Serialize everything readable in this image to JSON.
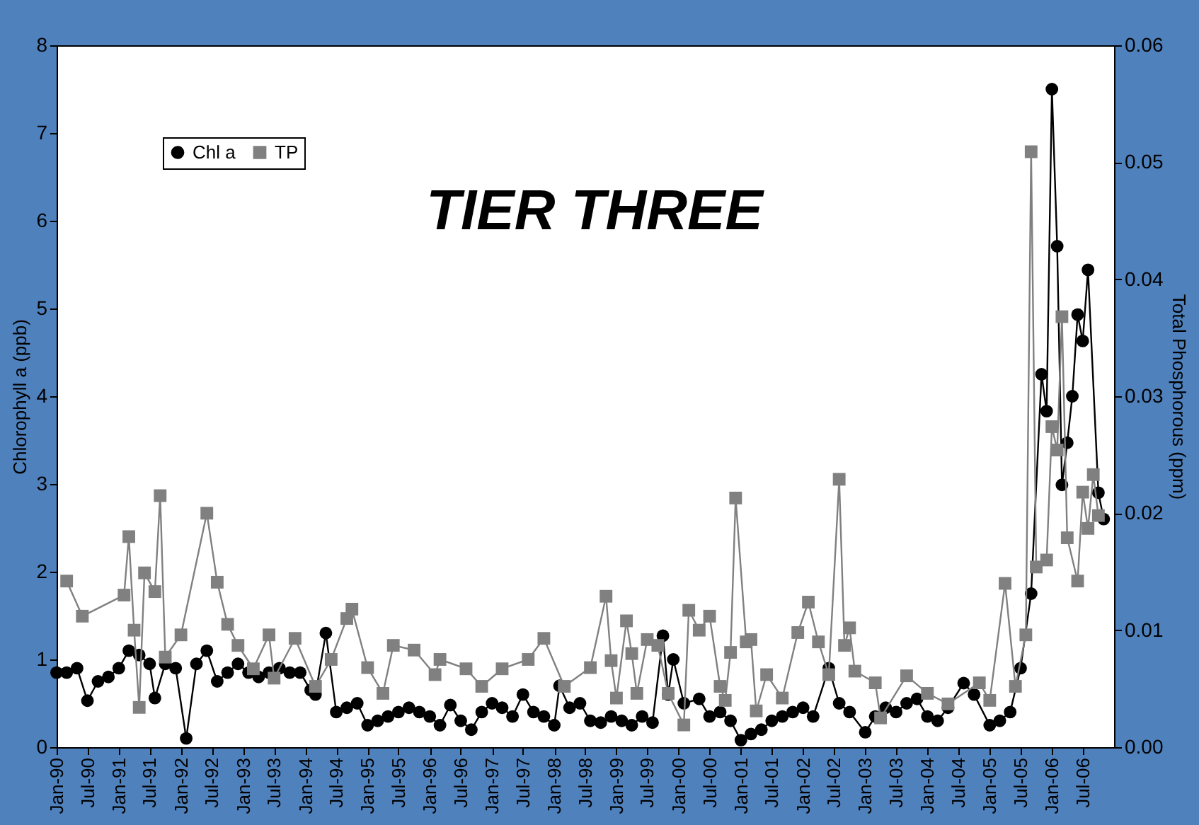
{
  "chart_data": {
    "type": "line",
    "ylabel": "Chlorophyll a (ppb)",
    "y2label": "Total Phosphorous (ppm)",
    "annotations": [
      "TIER THREE"
    ],
    "legend": "top left",
    "grid": false,
    "xlim": [
      "1990-01",
      "2007-01"
    ],
    "xticks": [
      {
        "value": "1990-01",
        "label": "Jan-90"
      },
      {
        "value": "1990-07",
        "label": "Jul-90"
      },
      {
        "value": "1991-01",
        "label": "Jan-91"
      },
      {
        "value": "1991-07",
        "label": "Jul-91"
      },
      {
        "value": "1992-01",
        "label": "Jan-92"
      },
      {
        "value": "1992-07",
        "label": "Jul-92"
      },
      {
        "value": "1993-01",
        "label": "Jan-93"
      },
      {
        "value": "1993-07",
        "label": "Jul-93"
      },
      {
        "value": "1994-01",
        "label": "Jan-94"
      },
      {
        "value": "1994-07",
        "label": "Jul-94"
      },
      {
        "value": "1995-01",
        "label": "Jan-95"
      },
      {
        "value": "1995-07",
        "label": "Jul-95"
      },
      {
        "value": "1996-01",
        "label": "Jan-96"
      },
      {
        "value": "1996-07",
        "label": "Jul-96"
      },
      {
        "value": "1997-01",
        "label": "Jan-97"
      },
      {
        "value": "1997-07",
        "label": "Jul-97"
      },
      {
        "value": "1998-01",
        "label": "Jan-98"
      },
      {
        "value": "1998-07",
        "label": "Jul-98"
      },
      {
        "value": "1999-01",
        "label": "Jan-99"
      },
      {
        "value": "1999-07",
        "label": "Jul-99"
      },
      {
        "value": "2000-01",
        "label": "Jan-00"
      },
      {
        "value": "2000-07",
        "label": "Jul-00"
      },
      {
        "value": "2001-01",
        "label": "Jan-01"
      },
      {
        "value": "2001-07",
        "label": "Jul-01"
      },
      {
        "value": "2002-01",
        "label": "Jan-02"
      },
      {
        "value": "2002-07",
        "label": "Jul-02"
      },
      {
        "value": "2003-01",
        "label": "Jan-03"
      },
      {
        "value": "2003-07",
        "label": "Jul-03"
      },
      {
        "value": "2004-01",
        "label": "Jan-04"
      },
      {
        "value": "2004-07",
        "label": "Jul-04"
      },
      {
        "value": "2005-01",
        "label": "Jan-05"
      },
      {
        "value": "2005-07",
        "label": "Jul-05"
      },
      {
        "value": "2006-01",
        "label": "Jan-06"
      },
      {
        "value": "2006-07",
        "label": "Jul-06"
      }
    ],
    "ylim": [
      0,
      8
    ],
    "yticks": [
      0,
      1,
      2,
      3,
      4,
      5,
      6,
      7,
      8
    ],
    "y2lim": [
      0,
      0.06
    ],
    "y2ticks": [
      {
        "value": 0,
        "label": "0.00"
      },
      0.01,
      0.02,
      0.03,
      0.04,
      0.05,
      0.06
    ],
    "series": [
      {
        "name": "Chl a",
        "color": "#000000",
        "marker": "circle",
        "x": [
          "1990-01",
          "1990-03",
          "1990-05",
          "1990-07",
          "1990-09",
          "1990-11",
          "1991-01",
          "1991-03",
          "1991-05",
          "1991-07",
          "1991-08",
          "1991-10",
          "1991-12",
          "1992-02",
          "1992-04",
          "1992-06",
          "1992-08",
          "1992-10",
          "1992-12",
          "1993-02",
          "1993-04",
          "1993-06",
          "1993-08",
          "1993-10",
          "1993-12",
          "1994-02",
          "1994-03",
          "1994-05",
          "1994-07",
          "1994-09",
          "1994-11",
          "1995-01",
          "1995-03",
          "1995-05",
          "1995-07",
          "1995-09",
          "1995-11",
          "1996-01",
          "1996-03",
          "1996-05",
          "1996-07",
          "1996-09",
          "1996-11",
          "1997-01",
          "1997-03",
          "1997-05",
          "1997-07",
          "1997-09",
          "1997-11",
          "1998-01",
          "1998-02",
          "1998-04",
          "1998-06",
          "1998-08",
          "1998-10",
          "1998-12",
          "1999-02",
          "1999-04",
          "1999-06",
          "1999-08",
          "1999-10",
          "1999-11",
          "1999-12",
          "2000-02",
          "2000-05",
          "2000-07",
          "2000-09",
          "2000-11",
          "2001-01",
          "2001-03",
          "2001-05",
          "2001-07",
          "2001-09",
          "2001-11",
          "2002-01",
          "2002-03",
          "2002-06",
          "2002-08",
          "2002-10",
          "2003-01",
          "2003-03",
          "2003-05",
          "2003-07",
          "2003-09",
          "2003-11",
          "2004-01",
          "2004-03",
          "2004-05",
          "2004-08",
          "2004-10",
          "2005-01",
          "2005-03",
          "2005-05",
          "2005-07",
          "2005-09",
          "2005-11",
          "2005-12",
          "2006-01",
          "2006-02",
          "2006-03",
          "2006-04",
          "2006-05",
          "2006-06",
          "2006-07",
          "2006-08",
          "2006-10",
          "2006-11"
        ],
        "values": [
          0.85,
          0.85,
          0.9,
          0.53,
          0.75,
          0.8,
          0.9,
          1.1,
          1.05,
          0.95,
          0.56,
          0.95,
          0.9,
          0.1,
          0.95,
          1.1,
          0.75,
          0.85,
          0.95,
          0.85,
          0.8,
          0.85,
          0.9,
          0.85,
          0.85,
          0.65,
          0.6,
          1.3,
          0.4,
          0.45,
          0.5,
          0.25,
          0.3,
          0.35,
          0.4,
          0.45,
          0.4,
          0.35,
          0.25,
          0.48,
          0.3,
          0.2,
          0.4,
          0.5,
          0.45,
          0.35,
          0.6,
          0.4,
          0.35,
          0.25,
          0.7,
          0.45,
          0.5,
          0.3,
          0.28,
          0.35,
          0.3,
          0.25,
          0.35,
          0.28,
          1.27,
          0.6,
          1.0,
          0.5,
          0.55,
          0.35,
          0.4,
          0.3,
          0.08,
          0.15,
          0.2,
          0.3,
          0.35,
          0.4,
          0.45,
          0.35,
          0.9,
          0.5,
          0.4,
          0.17,
          0.35,
          0.45,
          0.4,
          0.5,
          0.55,
          0.35,
          0.3,
          0.45,
          0.73,
          0.6,
          0.25,
          0.3,
          0.4,
          0.9,
          1.75,
          4.25,
          3.83,
          7.5,
          5.71,
          2.99,
          3.47,
          4.0,
          4.93,
          4.63,
          5.44,
          2.9,
          2.6
        ]
      },
      {
        "name": "TP",
        "color": "#808080",
        "marker": "square",
        "axis": "y2",
        "x": [
          "1990-03",
          "1990-06",
          "1991-02",
          "1991-03",
          "1991-04",
          "1991-05",
          "1991-06",
          "1991-08",
          "1991-09",
          "1991-10",
          "1992-01",
          "1992-06",
          "1992-08",
          "1992-10",
          "1992-12",
          "1993-03",
          "1993-06",
          "1993-07",
          "1993-11",
          "1994-03",
          "1994-06",
          "1994-09",
          "1994-10",
          "1995-01",
          "1995-04",
          "1995-06",
          "1995-10",
          "1996-02",
          "1996-03",
          "1996-08",
          "1996-11",
          "1997-03",
          "1997-08",
          "1997-11",
          "1998-03",
          "1998-08",
          "1998-11",
          "1998-12",
          "1999-01",
          "1999-03",
          "1999-04",
          "1999-05",
          "1999-07",
          "1999-09",
          "1999-11",
          "2000-02",
          "2000-03",
          "2000-05",
          "2000-07",
          "2000-09",
          "2000-10",
          "2000-11",
          "2000-12",
          "2001-02",
          "2001-03",
          "2001-04",
          "2001-06",
          "2001-09",
          "2001-12",
          "2002-02",
          "2002-04",
          "2002-06",
          "2002-08",
          "2002-09",
          "2002-10",
          "2002-11",
          "2003-03",
          "2003-04",
          "2003-09",
          "2004-01",
          "2004-05",
          "2004-11",
          "2005-01",
          "2005-04",
          "2005-06",
          "2005-08",
          "2005-09",
          "2005-10",
          "2005-12",
          "2006-01",
          "2006-02",
          "2006-03",
          "2006-04",
          "2006-06",
          "2006-07",
          "2006-08",
          "2006-09",
          "2006-10"
        ],
        "values": [
          0.0142,
          0.0112,
          0.013,
          0.018,
          0.01,
          0.0034,
          0.0149,
          0.0133,
          0.0215,
          0.0077,
          0.0096,
          0.02,
          0.0141,
          0.0105,
          0.0087,
          0.0067,
          0.0096,
          0.0059,
          0.0093,
          0.0052,
          0.0075,
          0.011,
          0.0118,
          0.0068,
          0.0046,
          0.0087,
          0.0083,
          0.0062,
          0.0075,
          0.0067,
          0.0052,
          0.0067,
          0.0075,
          0.0093,
          0.0052,
          0.0068,
          0.0129,
          0.0074,
          0.0042,
          0.0108,
          0.008,
          0.0046,
          0.0092,
          0.0087,
          0.0046,
          0.0019,
          0.0117,
          0.01,
          0.0112,
          0.0052,
          0.004,
          0.0081,
          0.0213,
          0.009,
          0.0092,
          0.0031,
          0.0062,
          0.0042,
          0.0098,
          0.0124,
          0.009,
          0.0062,
          0.0229,
          0.0087,
          0.0102,
          0.0065,
          0.0055,
          0.0025,
          0.0061,
          0.0046,
          0.0037,
          0.0055,
          0.004,
          0.014,
          0.0052,
          0.0096,
          0.0509,
          0.0154,
          0.016,
          0.0274,
          0.0254,
          0.0368,
          0.0179,
          0.0142,
          0.0218,
          0.0187,
          0.0233,
          0.0198
        ]
      }
    ]
  }
}
